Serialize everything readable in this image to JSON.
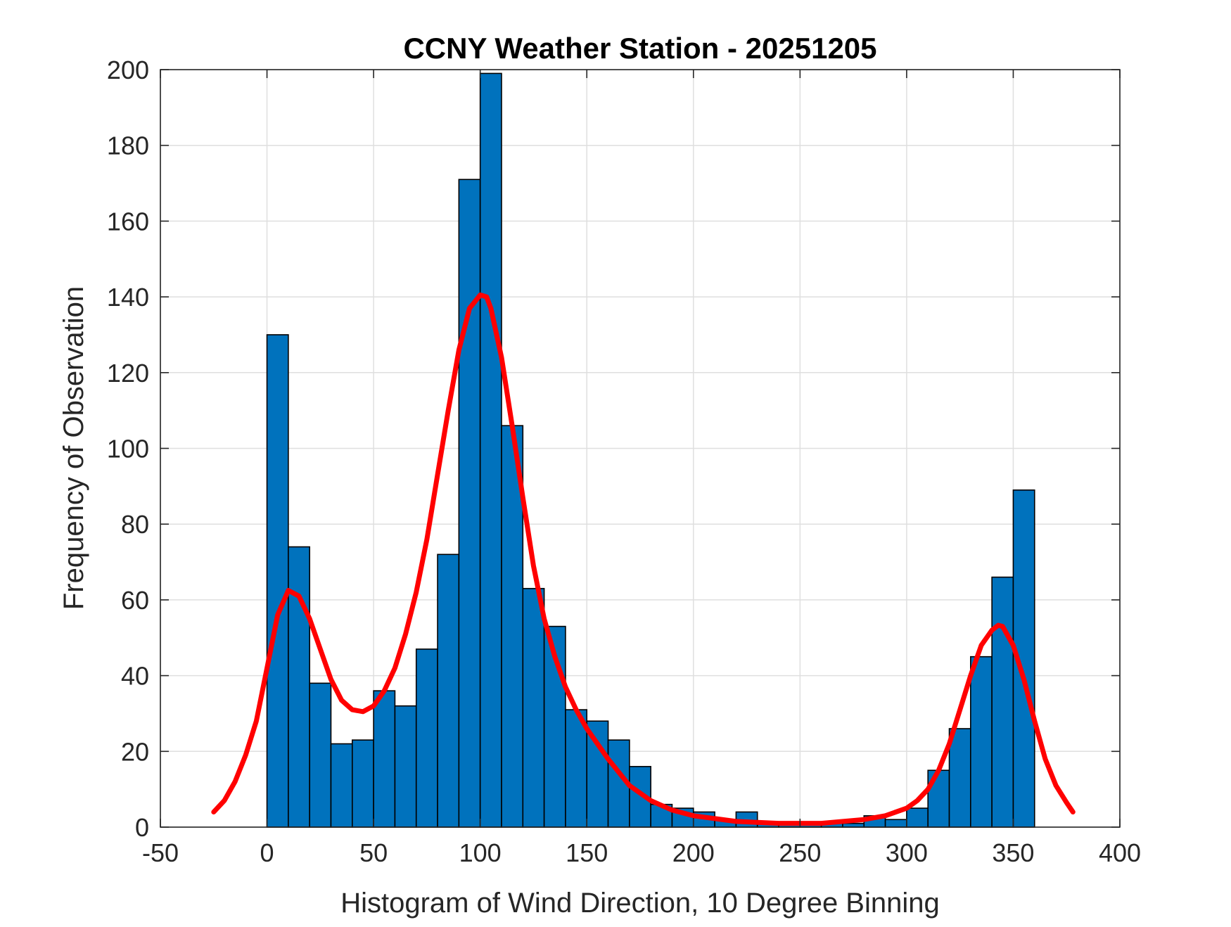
{
  "chart_data": {
    "type": "bar",
    "title": "CCNY Weather Station - 20251205",
    "xlabel": "Histogram of Wind Direction, 10 Degree Binning",
    "ylabel": "Frequency of Observation",
    "xlim": [
      -50,
      400
    ],
    "ylim": [
      0,
      200
    ],
    "xticks": [
      -50,
      0,
      50,
      100,
      150,
      200,
      250,
      300,
      350,
      400
    ],
    "yticks": [
      0,
      20,
      40,
      60,
      80,
      100,
      120,
      140,
      160,
      180,
      200
    ],
    "grid": true,
    "bin_width": 10,
    "bins": [
      {
        "x0": 0,
        "value": 130
      },
      {
        "x0": 10,
        "value": 74
      },
      {
        "x0": 20,
        "value": 38
      },
      {
        "x0": 30,
        "value": 22
      },
      {
        "x0": 40,
        "value": 23
      },
      {
        "x0": 50,
        "value": 36
      },
      {
        "x0": 60,
        "value": 32
      },
      {
        "x0": 70,
        "value": 47
      },
      {
        "x0": 80,
        "value": 72
      },
      {
        "x0": 90,
        "value": 171
      },
      {
        "x0": 100,
        "value": 199
      },
      {
        "x0": 110,
        "value": 106
      },
      {
        "x0": 120,
        "value": 63
      },
      {
        "x0": 130,
        "value": 53
      },
      {
        "x0": 140,
        "value": 31
      },
      {
        "x0": 150,
        "value": 28
      },
      {
        "x0": 160,
        "value": 23
      },
      {
        "x0": 170,
        "value": 16
      },
      {
        "x0": 180,
        "value": 6
      },
      {
        "x0": 190,
        "value": 5
      },
      {
        "x0": 200,
        "value": 4
      },
      {
        "x0": 210,
        "value": 2
      },
      {
        "x0": 220,
        "value": 4
      },
      {
        "x0": 230,
        "value": 1
      },
      {
        "x0": 240,
        "value": 1
      },
      {
        "x0": 250,
        "value": 1
      },
      {
        "x0": 260,
        "value": 1
      },
      {
        "x0": 270,
        "value": 1
      },
      {
        "x0": 280,
        "value": 3
      },
      {
        "x0": 290,
        "value": 2
      },
      {
        "x0": 300,
        "value": 5
      },
      {
        "x0": 310,
        "value": 15
      },
      {
        "x0": 320,
        "value": 26
      },
      {
        "x0": 330,
        "value": 45
      },
      {
        "x0": 340,
        "value": 66
      },
      {
        "x0": 350,
        "value": 89
      }
    ],
    "fit_curve": {
      "x": [
        -25,
        -20,
        -15,
        -10,
        -5,
        0,
        5,
        10,
        15,
        20,
        25,
        30,
        35,
        40,
        45,
        50,
        55,
        60,
        65,
        70,
        75,
        80,
        85,
        90,
        95,
        100,
        103,
        105,
        110,
        115,
        120,
        125,
        130,
        135,
        140,
        145,
        150,
        160,
        170,
        180,
        190,
        200,
        220,
        240,
        250,
        260,
        280,
        290,
        300,
        305,
        310,
        315,
        320,
        325,
        330,
        335,
        340,
        343,
        345,
        350,
        355,
        360,
        365,
        370,
        375,
        378
      ],
      "y": [
        4,
        7,
        12,
        19,
        28,
        42,
        56,
        62.5,
        61,
        55,
        47,
        39,
        33.5,
        31,
        30.5,
        32,
        36,
        42,
        51,
        62,
        76,
        93,
        110,
        126,
        137,
        140.5,
        140,
        137,
        124,
        106,
        87,
        69,
        55,
        45,
        37,
        31,
        26,
        18,
        11,
        7,
        4.5,
        3,
        1.5,
        1,
        1,
        1,
        2,
        3,
        5,
        7,
        10,
        15,
        22,
        31,
        40,
        48,
        52,
        53.3,
        53,
        48,
        39,
        28,
        18,
        11,
        6.5,
        4
      ],
      "color": "#ff0000"
    },
    "bar_color": "#0072bd"
  }
}
